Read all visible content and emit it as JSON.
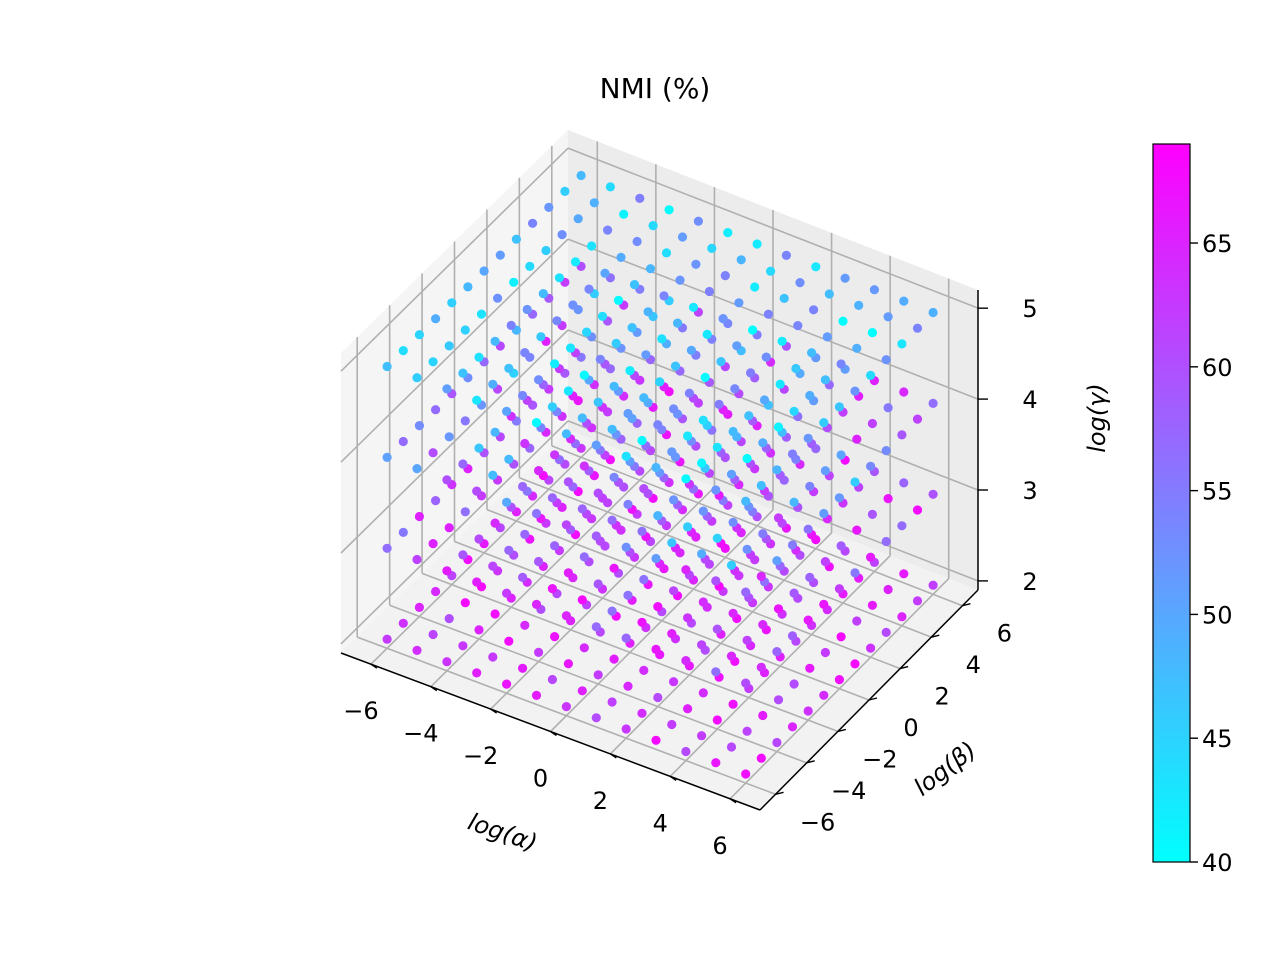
{
  "chart_data": {
    "type": "scatter",
    "projection": "3d",
    "title": "NMI (%)",
    "xlabel": "log(α)",
    "ylabel": "log(β)",
    "zlabel": "log(γ)",
    "xlim": [
      -7,
      7
    ],
    "ylim": [
      -7,
      7
    ],
    "zlim": [
      1.9,
      5.2
    ],
    "x_ticks": [
      -6,
      -4,
      -2,
      0,
      2,
      4,
      6
    ],
    "y_ticks": [
      -6,
      -4,
      -2,
      0,
      2,
      4,
      6
    ],
    "z_ticks": [
      2,
      3,
      4,
      5
    ],
    "x_values": [
      -6,
      -5,
      -4,
      -3,
      -2,
      -1,
      0,
      1,
      2,
      3,
      4,
      5,
      6
    ],
    "y_values": [
      -6,
      -5,
      -4,
      -3,
      -2,
      -1,
      0,
      1,
      2,
      3,
      4,
      5,
      6
    ],
    "z_values": [
      2,
      3,
      4,
      5
    ],
    "grid": true,
    "colorbar": {
      "cmap": "cool",
      "min": 40,
      "max": 69,
      "ticks": [
        40,
        45,
        50,
        55,
        60,
        65
      ],
      "colors": [
        "#00ffff",
        "#ff00ff"
      ]
    },
    "value_summary": [
      {
        "z": 2,
        "nmi_range": [
          60,
          68
        ]
      },
      {
        "z": 3,
        "nmi_range": [
          55,
          68
        ]
      },
      {
        "z": 4,
        "nmi_range": [
          45,
          66
        ]
      },
      {
        "z": 5,
        "nmi_range": [
          40,
          55
        ]
      }
    ]
  }
}
